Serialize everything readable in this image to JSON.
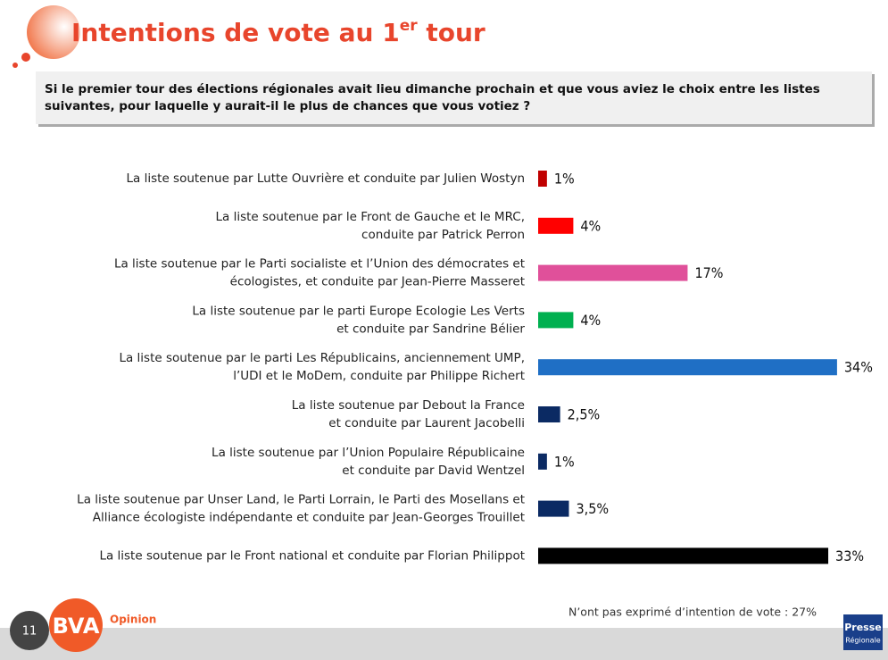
{
  "chart_data": {
    "type": "bar",
    "orientation": "horizontal",
    "title": [
      "Intentions de vote au 1",
      "er",
      " tour"
    ],
    "question": [
      "Si le premier tour des élections régionales avait lieu dimanche prochain et que vous aviez le choix entre les listes",
      "suivantes, pour laquelle y aurait-il le plus de chances que vous votiez ?"
    ],
    "categories": [
      [
        "La liste soutenue par Lutte Ouvrière et conduite par Julien Wostyn"
      ],
      [
        "La liste soutenue par le Front de Gauche et le MRC,",
        "conduite par Patrick Perron"
      ],
      [
        "La liste soutenue par le Parti socialiste et l’Union des démocrates et",
        "écologistes, et conduite par Jean-Pierre Masseret"
      ],
      [
        "La liste soutenue par le parti Europe Ecologie Les Verts",
        "et conduite par Sandrine Bélier"
      ],
      [
        "La liste soutenue par le parti Les Républicains, anciennement UMP,",
        "l’UDI et le MoDem, conduite par Philippe Richert"
      ],
      [
        "La liste soutenue par Debout la France",
        "et conduite par Laurent Jacobelli"
      ],
      [
        "La liste soutenue par l’Union Populaire Républicaine",
        "et conduite par David Wentzel"
      ],
      [
        "La liste soutenue par Unser Land, le Parti Lorrain, le Parti des Mosellans et",
        "Alliance écologiste indépendante et conduite par Jean-Georges Trouillet"
      ],
      [
        "La liste soutenue par le Front national et conduite par Florian Philippot"
      ]
    ],
    "values": [
      1,
      4,
      17,
      4,
      34,
      2.5,
      1,
      3.5,
      33
    ],
    "value_labels": [
      "1%",
      "4%",
      "17%",
      "4%",
      "34%",
      "2,5%",
      "1%",
      "3,5%",
      "33%"
    ],
    "colors": [
      "#c00000",
      "#ff0000",
      "#e0509a",
      "#00b050",
      "#1f6fc5",
      "#0b2a63",
      "#0b2a63",
      "#0b2a63",
      "#000000"
    ],
    "note": "N’ont pas exprimé d’intention de vote : 27%",
    "page_number": "11",
    "logo": "BVA",
    "logo_sub": "Opinion",
    "partner": [
      "Presse",
      "Régionale"
    ]
  }
}
